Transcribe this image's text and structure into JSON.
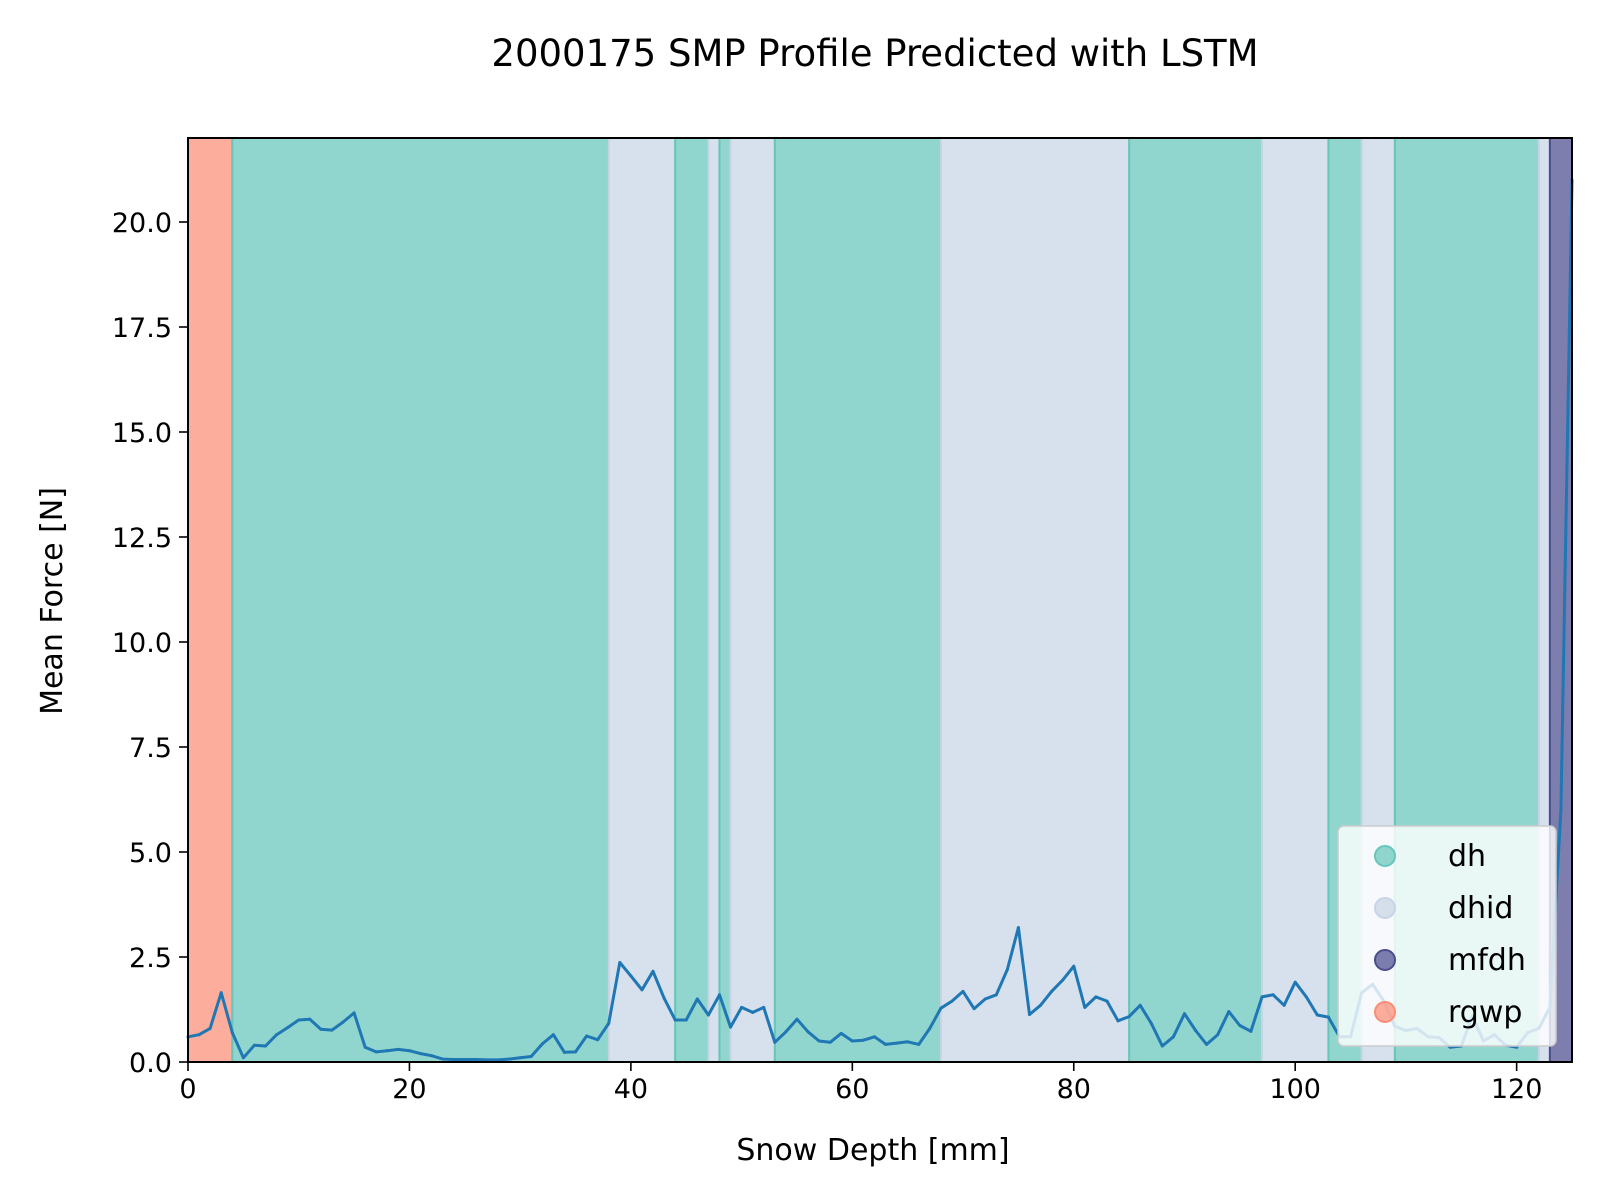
{
  "chart_data": {
    "type": "line",
    "title": "2000175 SMP Profile Predicted with LSTM",
    "xlabel": "Snow Depth [mm]",
    "ylabel": "Mean Force [N]",
    "xlim": [
      0,
      125
    ],
    "ylim": [
      0,
      22
    ],
    "xticks": [
      0,
      20,
      40,
      60,
      80,
      100,
      120
    ],
    "yticks": [
      0.0,
      2.5,
      5.0,
      7.5,
      10.0,
      12.5,
      15.0,
      17.5,
      20.0
    ],
    "xtick_labels": [
      "0",
      "20",
      "40",
      "60",
      "80",
      "100",
      "120"
    ],
    "ytick_labels": [
      "0.0",
      "2.5",
      "5.0",
      "7.5",
      "10.0",
      "12.5",
      "15.0",
      "17.5",
      "20.0"
    ],
    "grid": false,
    "legend_position": "lower-right",
    "legend": [
      {
        "label": "dh",
        "color": "#66c6bb"
      },
      {
        "label": "dhid",
        "color": "#c8d4e6"
      },
      {
        "label": "mfdh",
        "color": "#4b4c8e"
      },
      {
        "label": "rgwp",
        "color": "#fc8d76"
      }
    ],
    "class_colors": {
      "dh": "#66c6bb",
      "dhid": "#c8d4e6",
      "mfdh": "#4b4c8e",
      "rgwp": "#fc8d76"
    },
    "line_color": "#1f77b4",
    "regions": [
      {
        "start": 0,
        "end": 4,
        "class": "rgwp"
      },
      {
        "start": 4,
        "end": 38,
        "class": "dh"
      },
      {
        "start": 38,
        "end": 44,
        "class": "dhid"
      },
      {
        "start": 44,
        "end": 47,
        "class": "dh"
      },
      {
        "start": 47,
        "end": 48,
        "class": "dhid"
      },
      {
        "start": 48,
        "end": 49,
        "class": "dh"
      },
      {
        "start": 49,
        "end": 53,
        "class": "dhid"
      },
      {
        "start": 53,
        "end": 68,
        "class": "dh"
      },
      {
        "start": 68,
        "end": 85,
        "class": "dhid"
      },
      {
        "start": 85,
        "end": 97,
        "class": "dh"
      },
      {
        "start": 97,
        "end": 103,
        "class": "dhid"
      },
      {
        "start": 103,
        "end": 106,
        "class": "dh"
      },
      {
        "start": 106,
        "end": 109,
        "class": "dhid"
      },
      {
        "start": 109,
        "end": 122,
        "class": "dh"
      },
      {
        "start": 122,
        "end": 123,
        "class": "dhid"
      },
      {
        "start": 123,
        "end": 125,
        "class": "mfdh"
      }
    ],
    "series": [
      {
        "x": [
          0,
          1,
          2,
          3,
          4,
          5,
          6,
          7,
          8,
          9,
          10,
          11,
          12,
          13,
          14,
          15,
          16,
          17,
          18,
          19,
          20,
          21,
          22,
          23,
          24,
          25,
          26,
          27,
          28,
          29,
          30,
          31,
          32,
          33,
          34,
          35,
          36,
          37,
          38,
          39,
          40,
          41,
          42,
          43,
          44,
          45,
          46,
          47,
          48,
          49,
          50,
          51,
          52,
          53,
          54,
          55,
          56,
          57,
          58,
          59,
          60,
          61,
          62,
          63,
          64,
          65,
          66,
          67,
          68,
          69,
          70,
          71,
          72,
          73,
          74,
          75,
          76,
          77,
          78,
          79,
          80,
          81,
          82,
          83,
          84,
          85,
          86,
          87,
          88,
          89,
          90,
          91,
          92,
          93,
          94,
          95,
          96,
          97,
          98,
          99,
          100,
          101,
          102,
          103,
          104,
          105,
          106,
          107,
          108,
          109,
          110,
          111,
          112,
          113,
          114,
          115,
          116,
          117,
          118,
          119,
          120,
          121,
          122,
          123,
          124,
          125
        ],
        "values": [
          0.6,
          0.65,
          0.8,
          1.65,
          0.7,
          0.1,
          0.4,
          0.38,
          0.65,
          0.82,
          1.0,
          1.02,
          0.78,
          0.76,
          0.95,
          1.17,
          0.35,
          0.24,
          0.27,
          0.3,
          0.27,
          0.2,
          0.15,
          0.07,
          0.06,
          0.06,
          0.06,
          0.05,
          0.05,
          0.07,
          0.1,
          0.13,
          0.43,
          0.65,
          0.23,
          0.24,
          0.62,
          0.53,
          0.92,
          2.37,
          2.05,
          1.72,
          2.16,
          1.52,
          1.0,
          1.0,
          1.5,
          1.12,
          1.6,
          0.83,
          1.3,
          1.18,
          1.3,
          0.47,
          0.72,
          1.02,
          0.72,
          0.5,
          0.47,
          0.68,
          0.5,
          0.52,
          0.6,
          0.42,
          0.45,
          0.48,
          0.42,
          0.8,
          1.28,
          1.45,
          1.68,
          1.27,
          1.5,
          1.6,
          2.2,
          3.2,
          1.13,
          1.35,
          1.68,
          1.95,
          2.28,
          1.3,
          1.55,
          1.45,
          0.98,
          1.08,
          1.35,
          0.92,
          0.38,
          0.6,
          1.15,
          0.75,
          0.42,
          0.65,
          1.2,
          0.87,
          0.73,
          1.55,
          1.6,
          1.35,
          1.9,
          1.55,
          1.12,
          1.07,
          0.6,
          0.6,
          1.65,
          1.85,
          1.45,
          0.85,
          0.75,
          0.8,
          0.6,
          0.58,
          0.35,
          0.38,
          1.1,
          0.5,
          0.65,
          0.4,
          0.35,
          0.7,
          0.8,
          1.3,
          6.0,
          21.0
        ]
      }
    ]
  }
}
